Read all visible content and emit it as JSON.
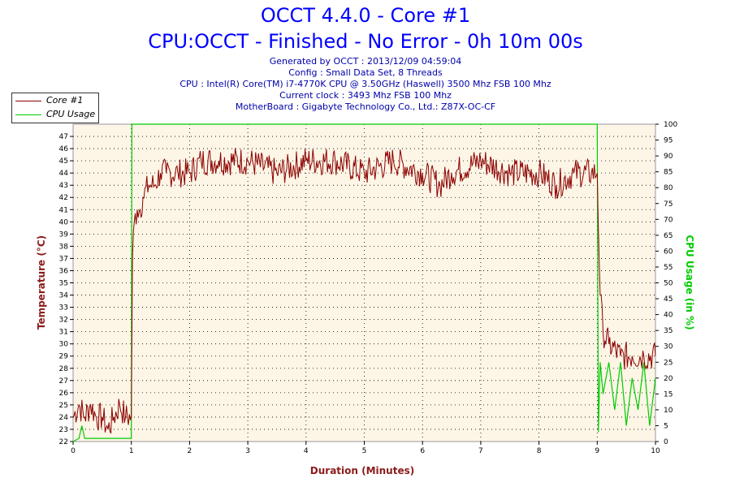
{
  "title": {
    "line1": "OCCT 4.4.0 - Core #1",
    "line2": "CPU:OCCT - Finished - No Error - 0h 10m 00s"
  },
  "info": [
    "Generated by OCCT : 2013/12/09 04:59:04",
    "Config : Small Data Set, 8 Threads",
    "CPU : Intel(R) Core(TM) i7-4770K CPU @ 3.50GHz (Haswell) 3500 Mhz FSB 100 Mhz",
    "Current clock : 3493 Mhz FSB 100 Mhz",
    "MotherBoard : Gigabyte Technology Co., Ltd.: Z87X-OC-CF"
  ],
  "colors": {
    "temperature": "#8b0000",
    "usage": "#00cc00",
    "plot_bg": "#fdf5e6",
    "title": "#0000ff"
  },
  "chart_data": {
    "type": "line",
    "xlabel": "Duration (Minutes)",
    "ylabel_left": "Temperature (°C)",
    "ylabel_right": "CPU Usage (in %)",
    "xlim": [
      0,
      10
    ],
    "ylim_left": [
      22,
      48
    ],
    "ylim_right": [
      0,
      100
    ],
    "grid": true,
    "legend_position": "top-left",
    "x_ticks": [
      0,
      1,
      2,
      3,
      4,
      5,
      6,
      7,
      8,
      9,
      10
    ],
    "y_left_ticks": [
      22,
      23,
      24,
      25,
      26,
      27,
      28,
      29,
      30,
      31,
      32,
      33,
      34,
      35,
      36,
      37,
      38,
      39,
      40,
      41,
      42,
      43,
      44,
      45,
      46,
      47
    ],
    "y_right_ticks": [
      0,
      5,
      10,
      15,
      20,
      25,
      30,
      35,
      40,
      45,
      50,
      55,
      60,
      65,
      70,
      75,
      80,
      85,
      90,
      95,
      100
    ],
    "series": [
      {
        "name": "Core #1",
        "axis": "left",
        "x": [
          0,
          0.1,
          0.2,
          0.3,
          0.4,
          0.5,
          0.6,
          0.7,
          0.8,
          0.9,
          1.0,
          1.02,
          1.05,
          1.1,
          1.15,
          1.2,
          1.3,
          1.4,
          1.5,
          1.6,
          1.8,
          2.0,
          2.2,
          2.5,
          3.0,
          3.5,
          4.0,
          4.5,
          5.0,
          5.5,
          6.0,
          6.3,
          6.5,
          7.0,
          7.5,
          8.0,
          8.3,
          8.6,
          8.9,
          9.0,
          9.05,
          9.1,
          9.2,
          9.4,
          9.6,
          9.8,
          10.0
        ],
        "y": [
          24,
          25,
          24,
          25,
          24,
          24,
          23,
          24,
          25,
          24,
          24,
          37,
          40,
          41,
          41,
          42,
          43,
          43,
          44,
          44,
          44,
          44,
          45,
          45,
          45,
          44,
          45,
          45,
          44,
          45,
          44,
          43,
          44,
          45,
          44,
          44,
          43,
          44,
          44,
          44,
          34,
          31,
          30,
          29,
          29,
          29,
          29
        ]
      },
      {
        "name": "CPU Usage",
        "axis": "right",
        "x": [
          0,
          0.1,
          0.15,
          0.2,
          0.4,
          0.6,
          0.8,
          0.98,
          1.0,
          1.01,
          8.99,
          9.0,
          9.02,
          9.05,
          9.1,
          9.2,
          9.3,
          9.4,
          9.5,
          9.6,
          9.7,
          9.8,
          9.9,
          10.0
        ],
        "y": [
          0,
          1,
          5,
          1,
          1,
          1,
          1,
          1,
          1,
          100,
          100,
          100,
          3,
          25,
          15,
          25,
          10,
          25,
          5,
          20,
          10,
          25,
          5,
          20
        ]
      }
    ]
  }
}
